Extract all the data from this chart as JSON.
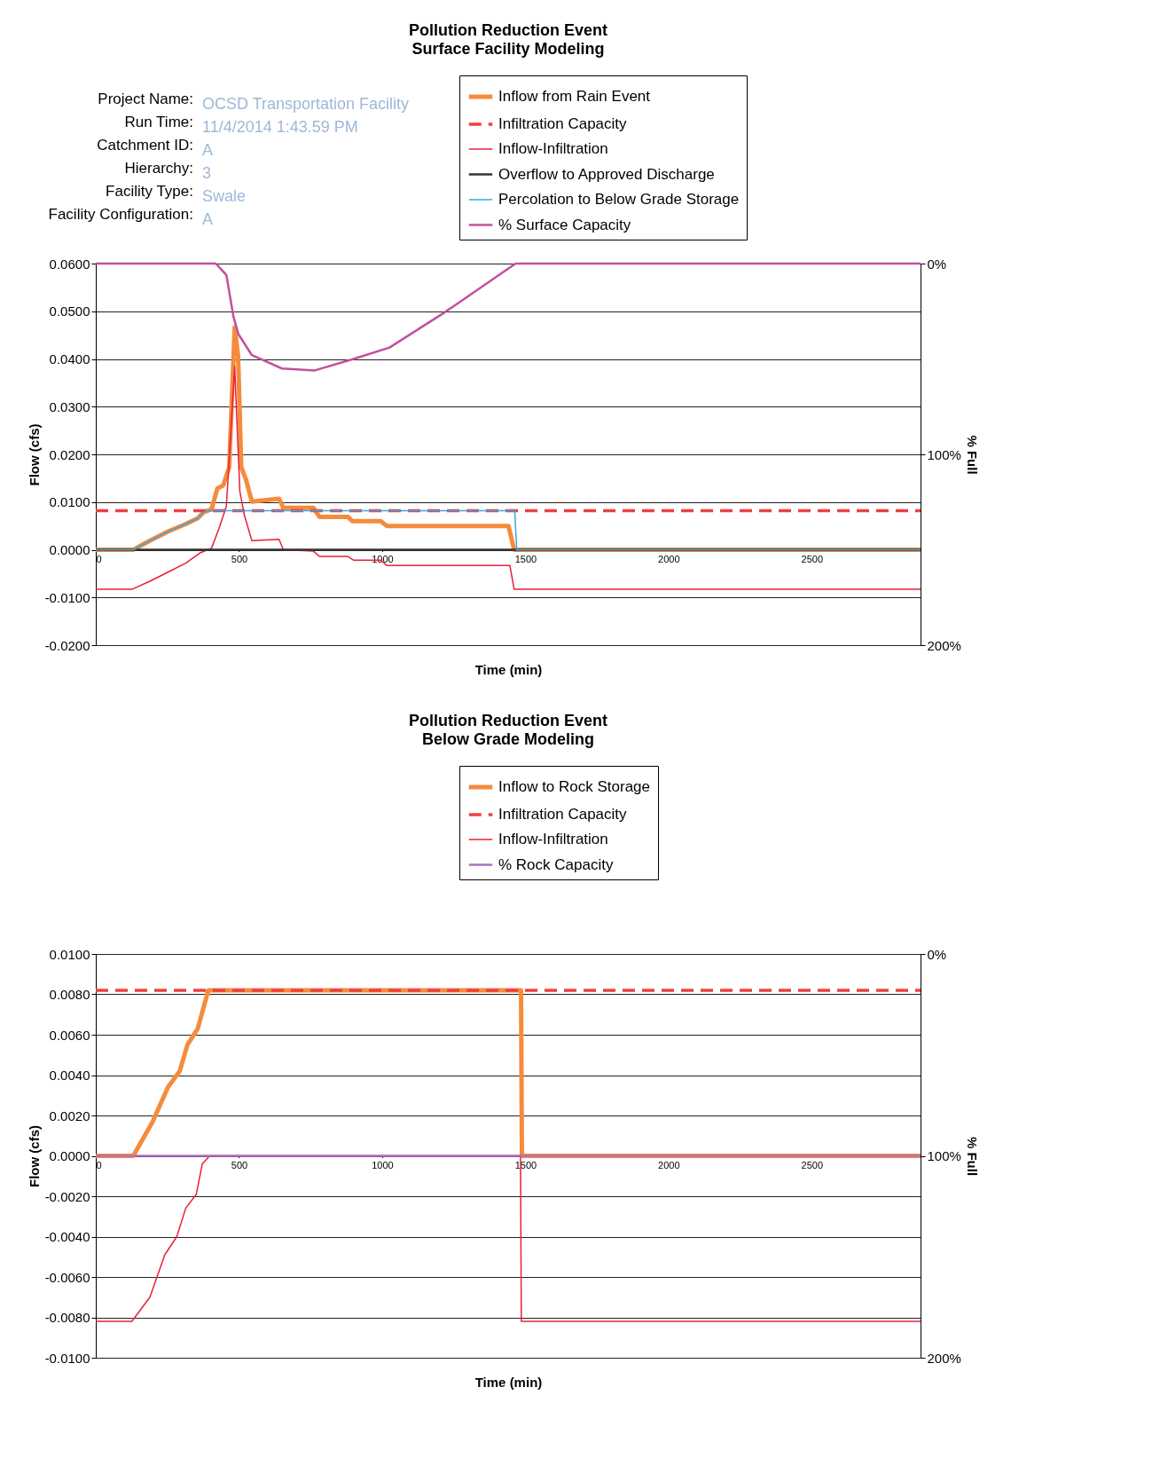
{
  "chart_data": [
    {
      "type": "line",
      "title": "Pollution Reduction Event",
      "subtitle": "Surface Facility Modeling",
      "xlabel": "Time (min)",
      "ylabel": "Flow (cfs)",
      "y2label": "% Full",
      "annotations": [
        "Project Name:",
        "OCSD Transportation Facility",
        "Run Time:",
        "11/4/2014 1:43.59 PM",
        "Catchment ID:",
        "A",
        "Hierarchy:",
        "3",
        "Facility Type:",
        "Swale",
        "Facility Configuration:",
        "A"
      ],
      "xlim": [
        0,
        2880
      ],
      "xticks": [
        0,
        500,
        1000,
        1500,
        2000,
        2500
      ],
      "ylim": [
        -0.02,
        0.06
      ],
      "yticks": [
        {
          "value": -0.02,
          "label": "-0.0200"
        },
        {
          "value": -0.01,
          "label": "-0.0100"
        },
        {
          "value": 0,
          "label": "0.0000"
        },
        {
          "value": 0.01,
          "label": "0.0100"
        },
        {
          "value": 0.02,
          "label": "0.0200"
        },
        {
          "value": 0.03,
          "label": "0.0300"
        },
        {
          "value": 0.04,
          "label": "0.0400"
        },
        {
          "value": 0.05,
          "label": "0.0500"
        },
        {
          "value": 0.06,
          "label": "0.0600"
        }
      ],
      "y2lim": [
        200,
        0
      ],
      "y2ticks": [
        {
          "value": 0,
          "label": "0%"
        },
        {
          "value": 100,
          "label": "100%"
        },
        {
          "value": 200,
          "label": "200%"
        }
      ],
      "grid": "y",
      "legend": "top right",
      "series": [
        {
          "name": "Inflow from Rain Event",
          "color": "#f58b3c",
          "x": [
            0,
            131,
            189,
            252,
            314,
            356,
            377,
            404,
            425,
            445,
            466,
            485,
            497,
            508,
            524,
            545,
            640,
            655,
            760,
            781,
            880,
            896,
            995,
            1016,
            1441,
            1461,
            2880
          ],
          "values": [
            0,
            0,
            0.0019,
            0.0038,
            0.0054,
            0.0066,
            0.0079,
            0.0085,
            0.0129,
            0.0135,
            0.0173,
            0.0466,
            0.0406,
            0.0173,
            0.0148,
            0.0101,
            0.0107,
            0.0088,
            0.0088,
            0.0069,
            0.0069,
            0.006,
            0.006,
            0.005,
            0.005,
            0,
            0
          ]
        },
        {
          "name": "Infiltration Capacity",
          "color": "#ee4040",
          "line_style": "dashed",
          "x": [
            0,
            2880
          ],
          "values": [
            0.0082,
            0.0082
          ]
        },
        {
          "name": "Inflow-Infiltration",
          "color": "#e8203a",
          "x": [
            0,
            126,
            189,
            252,
            314,
            366,
            404,
            430,
            456,
            485,
            503,
            519,
            545,
            640,
            655,
            760,
            781,
            880,
            901,
            995,
            1016,
            1446,
            1461,
            2880
          ],
          "values": [
            -0.0083,
            -0.0083,
            -0.0066,
            -0.0047,
            -0.0028,
            -0.0006,
            0.0003,
            0.0044,
            0.0091,
            0.0384,
            0.0123,
            0.0072,
            0.0019,
            0.0022,
            0,
            -0.0003,
            -0.0014,
            -0.0014,
            -0.0022,
            -0.0022,
            -0.0033,
            -0.0033,
            -0.0083,
            -0.0083
          ]
        },
        {
          "name": "Overflow to Approved Discharge",
          "color": "#333333",
          "x": [
            0,
            2880
          ],
          "values": [
            0,
            0
          ]
        },
        {
          "name": "Percolation to Below Grade Storage",
          "color": "#3aa7e0",
          "x": [
            0,
            131,
            189,
            252,
            314,
            356,
            377,
            400,
            1463,
            1470,
            2880
          ],
          "values": [
            0,
            0,
            0.0019,
            0.0038,
            0.0054,
            0.0066,
            0.0079,
            0.0082,
            0.0082,
            0,
            0
          ]
        },
        {
          "name": "% Surface Capacity",
          "color": "#c4509c",
          "axis": "y2",
          "x": [
            0,
            419,
            456,
            481,
            498,
            545,
            650,
            765,
            900,
            1026,
            1214,
            1466,
            2880
          ],
          "values": [
            0,
            0,
            6,
            28,
            37,
            48,
            55,
            56,
            50,
            44,
            26,
            0,
            0
          ]
        }
      ]
    },
    {
      "type": "line",
      "title": "Pollution Reduction Event",
      "subtitle": "Below Grade Modeling",
      "xlabel": "Time (min)",
      "ylabel": "Flow (cfs)",
      "y2label": "% Full",
      "xlim": [
        0,
        2880
      ],
      "xticks": [
        0,
        500,
        1000,
        1500,
        2000,
        2500
      ],
      "ylim": [
        -0.01,
        0.01
      ],
      "yticks": [
        {
          "value": -0.01,
          "label": "-0.0100"
        },
        {
          "value": -0.008,
          "label": "-0.0080"
        },
        {
          "value": -0.006,
          "label": "-0.0060"
        },
        {
          "value": -0.004,
          "label": "-0.0040"
        },
        {
          "value": -0.002,
          "label": "-0.0020"
        },
        {
          "value": 0,
          "label": "0.0000"
        },
        {
          "value": 0.002,
          "label": "0.0020"
        },
        {
          "value": 0.004,
          "label": "0.0040"
        },
        {
          "value": 0.006,
          "label": "0.0060"
        },
        {
          "value": 0.008,
          "label": "0.0080"
        },
        {
          "value": 0.01,
          "label": "0.0100"
        }
      ],
      "y2lim": [
        200,
        0
      ],
      "y2ticks": [
        {
          "value": 0,
          "label": "0%"
        },
        {
          "value": 100,
          "label": "100%"
        },
        {
          "value": 200,
          "label": "200%"
        }
      ],
      "grid": "y",
      "legend": "top right",
      "series": [
        {
          "name": "Inflow to Rock Storage",
          "color": "#f58b3c",
          "x": [
            0,
            131,
            199,
            252,
            293,
            320,
            356,
            393,
            1485,
            1488,
            2880
          ],
          "values": [
            0,
            0,
            0.0017,
            0.0034,
            0.0042,
            0.0055,
            0.0063,
            0.0082,
            0.0082,
            0,
            0
          ]
        },
        {
          "name": "Infiltration Capacity",
          "color": "#ee4040",
          "line_style": "dashed",
          "x": [
            0,
            2880
          ],
          "values": [
            0.0082,
            0.0082
          ]
        },
        {
          "name": "Inflow-Infiltration",
          "color": "#e8203a",
          "x": [
            0,
            126,
            189,
            241,
            283,
            314,
            351,
            372,
            398,
            1483,
            1486,
            2880
          ],
          "values": [
            -0.0082,
            -0.0082,
            -0.007,
            -0.0049,
            -0.004,
            -0.0026,
            -0.0019,
            -0.0004,
            0,
            0,
            -0.0082,
            -0.0082
          ]
        },
        {
          "name": "% Rock Capacity",
          "color": "#b070c0",
          "axis": "y2",
          "x": [
            0,
            2880
          ],
          "values": [
            100,
            100
          ]
        }
      ]
    }
  ]
}
